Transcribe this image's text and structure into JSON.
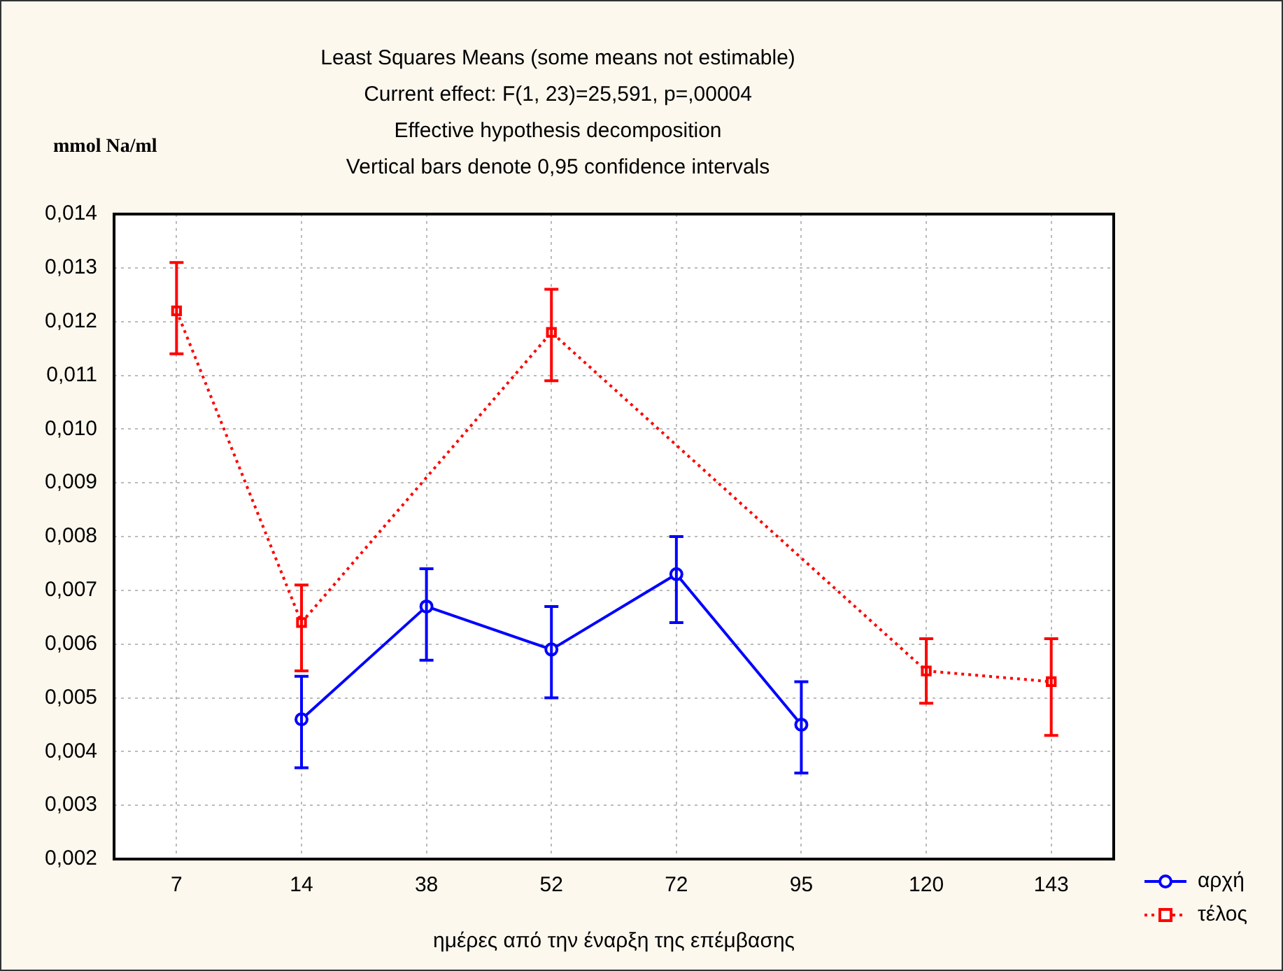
{
  "chart_data": {
    "type": "line",
    "title": "Least Squares Means (some means not estimable)",
    "subtitle": "Current effect: F(1, 23)=25,591, p=,00004\nEffective hypothesis decomposition\nVertical bars denote 0,95 confidence intervals",
    "ylabel": "mmol Na/ml",
    "xlabel": "ημέρες από την έναρξη της επέμβασης",
    "categories": [
      "7",
      "14",
      "38",
      "52",
      "72",
      "95",
      "120",
      "143"
    ],
    "series": [
      {
        "name": "αρχή",
        "color": "#0000ff",
        "marker": "circle",
        "line_style": "solid",
        "values": [
          null,
          0.0046,
          0.0067,
          0.0059,
          0.0073,
          0.0045,
          null,
          null
        ],
        "errors": [
          null,
          [
            0.0037,
            0.0054
          ],
          [
            0.0057,
            0.0074
          ],
          [
            0.005,
            0.0067
          ],
          [
            0.0064,
            0.008
          ],
          [
            0.0036,
            0.0053
          ],
          null,
          null
        ]
      },
      {
        "name": "τέλος",
        "color": "#ff0000",
        "marker": "square",
        "line_style": "dotted",
        "values": [
          0.0122,
          0.0064,
          null,
          0.0118,
          null,
          null,
          0.0055,
          0.0053
        ],
        "errors": [
          [
            0.0114,
            0.0131
          ],
          [
            0.0055,
            0.0071
          ],
          null,
          [
            0.0109,
            0.0126
          ],
          null,
          null,
          [
            0.0049,
            0.0061
          ],
          [
            0.0043,
            0.0061
          ]
        ]
      }
    ],
    "ylim": [
      0.002,
      0.014
    ],
    "yticks": [
      {
        "value": 0.002,
        "label": "0,002"
      },
      {
        "value": 0.003,
        "label": "0,003"
      },
      {
        "value": 0.004,
        "label": "0,004"
      },
      {
        "value": 0.005,
        "label": "0,005"
      },
      {
        "value": 0.006,
        "label": "0,006"
      },
      {
        "value": 0.007,
        "label": "0,007"
      },
      {
        "value": 0.008,
        "label": "0,008"
      },
      {
        "value": 0.009,
        "label": "0,009"
      },
      {
        "value": 0.01,
        "label": "0,010"
      },
      {
        "value": 0.011,
        "label": "0,011"
      },
      {
        "value": 0.012,
        "label": "0,012"
      },
      {
        "value": 0.013,
        "label": "0,013"
      },
      {
        "value": 0.014,
        "label": "0,014"
      }
    ],
    "grid": true,
    "legend": "bottom right"
  }
}
